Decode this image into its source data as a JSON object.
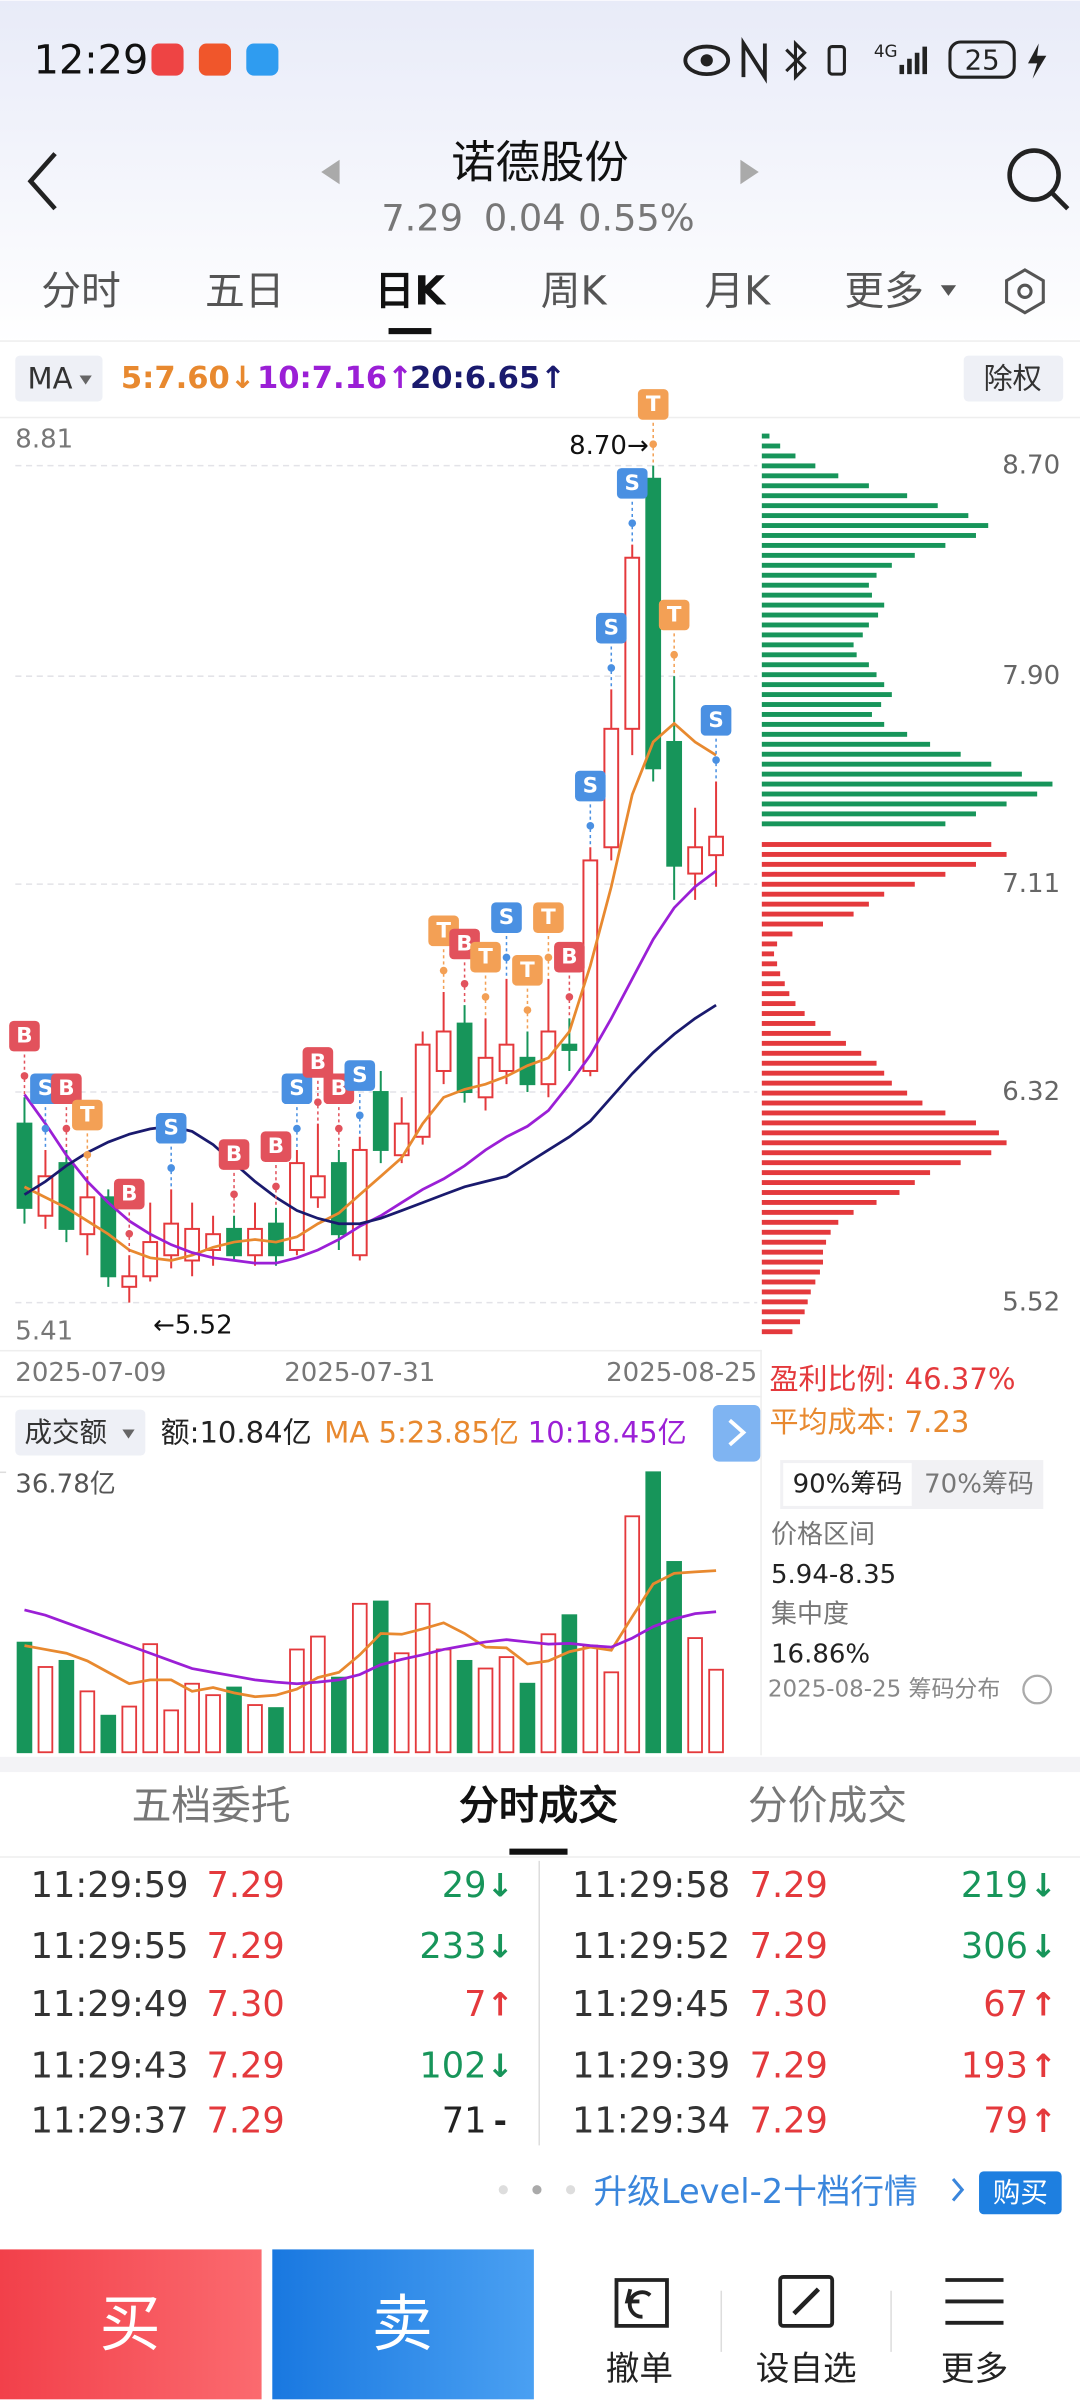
{
  "status_bar": {
    "time": "12:29",
    "network": "4G",
    "battery": "25"
  },
  "header": {
    "title": "诺德股份",
    "price": "7.29",
    "change": "0.04",
    "change_pct": "0.55%"
  },
  "tabs": [
    "分时",
    "五日",
    "日K",
    "周K",
    "月K",
    "更多"
  ],
  "ma_legend": {
    "label": "MA",
    "ma5": "5:7.60↓",
    "ma10": "10:7.16↑",
    "ma20": "20:6.65↑",
    "adjust": "除权"
  },
  "chart_data": [
    {
      "type": "candlestick",
      "categories": [
        "2025-07-09",
        null,
        null,
        null,
        null,
        null,
        null,
        null,
        null,
        null,
        null,
        null,
        null,
        null,
        null,
        null,
        "2025-07-31",
        null,
        null,
        null,
        null,
        null,
        null,
        null,
        null,
        null,
        null,
        null,
        null,
        null,
        null,
        null,
        null,
        "2025-08-25"
      ],
      "ohlc": [
        [
          6.2,
          6.3,
          5.82,
          5.88
        ],
        [
          5.85,
          6.1,
          5.8,
          6.0
        ],
        [
          6.05,
          6.1,
          5.75,
          5.8
        ],
        [
          5.78,
          6.0,
          5.7,
          5.92
        ],
        [
          5.92,
          5.95,
          5.58,
          5.62
        ],
        [
          5.58,
          5.7,
          5.52,
          5.62
        ],
        [
          5.62,
          5.9,
          5.6,
          5.75
        ],
        [
          5.7,
          5.95,
          5.65,
          5.82
        ],
        [
          5.68,
          5.9,
          5.62,
          5.8
        ],
        [
          5.72,
          5.85,
          5.66,
          5.78
        ],
        [
          5.8,
          5.85,
          5.68,
          5.7
        ],
        [
          5.7,
          5.9,
          5.66,
          5.8
        ],
        [
          5.82,
          5.88,
          5.66,
          5.7
        ],
        [
          5.72,
          6.1,
          5.7,
          6.05
        ],
        [
          5.92,
          6.2,
          5.88,
          6.0
        ],
        [
          6.05,
          6.1,
          5.72,
          5.78
        ],
        [
          5.7,
          6.15,
          5.68,
          6.1
        ],
        [
          6.32,
          6.4,
          6.05,
          6.1
        ],
        [
          6.08,
          6.3,
          6.05,
          6.2
        ],
        [
          6.15,
          6.55,
          6.12,
          6.5
        ],
        [
          6.4,
          6.7,
          6.35,
          6.55
        ],
        [
          6.58,
          6.65,
          6.28,
          6.32
        ],
        [
          6.3,
          6.6,
          6.25,
          6.45
        ],
        [
          6.4,
          6.75,
          6.35,
          6.5
        ],
        [
          6.45,
          6.55,
          6.32,
          6.35
        ],
        [
          6.35,
          6.75,
          6.3,
          6.55
        ],
        [
          6.5,
          6.6,
          6.4,
          6.48
        ],
        [
          6.4,
          7.25,
          6.38,
          7.2
        ],
        [
          7.25,
          7.85,
          7.2,
          7.7
        ],
        [
          7.7,
          8.4,
          7.6,
          8.35
        ],
        [
          8.65,
          8.7,
          7.5,
          7.55
        ],
        [
          7.65,
          7.9,
          7.05,
          7.18
        ],
        [
          7.15,
          7.4,
          7.05,
          7.25
        ],
        [
          7.22,
          7.5,
          7.1,
          7.29
        ]
      ],
      "up_color": "#e4393c",
      "down_color": "#17955a",
      "ma_lines": [
        {
          "color": "#e8892f",
          "values": [
            5.96,
            5.92,
            5.88,
            5.83,
            5.78,
            5.72,
            5.69,
            5.68,
            5.7,
            5.73,
            5.75,
            5.76,
            5.75,
            5.77,
            5.82,
            5.86,
            5.93,
            6.0,
            6.07,
            6.2,
            6.3,
            6.33,
            6.35,
            6.38,
            6.42,
            6.45,
            6.55,
            6.8,
            7.1,
            7.45,
            7.65,
            7.72,
            7.65,
            7.6
          ]
        },
        {
          "color": "#9b1fd6",
          "values": [
            6.31,
            6.2,
            6.08,
            5.98,
            5.9,
            5.83,
            5.78,
            5.74,
            5.71,
            5.69,
            5.68,
            5.67,
            5.67,
            5.69,
            5.72,
            5.76,
            5.81,
            5.85,
            5.9,
            5.95,
            5.99,
            6.04,
            6.1,
            6.15,
            6.19,
            6.25,
            6.35,
            6.46,
            6.6,
            6.75,
            6.9,
            7.02,
            7.1,
            7.16
          ]
        },
        {
          "color": "#1a1a6e",
          "values": [
            5.93,
            5.98,
            6.04,
            6.09,
            6.13,
            6.16,
            6.18,
            6.19,
            6.17,
            6.12,
            6.05,
            5.98,
            5.92,
            5.87,
            5.84,
            5.82,
            5.82,
            5.84,
            5.87,
            5.9,
            5.93,
            5.96,
            5.98,
            6.0,
            6.05,
            6.1,
            6.15,
            6.21,
            6.3,
            6.39,
            6.47,
            6.54,
            6.6,
            6.65
          ]
        }
      ],
      "signals": [
        [
          "B"
        ],
        [
          "S"
        ],
        [
          "B"
        ],
        [
          "T"
        ],
        null,
        [
          "B"
        ],
        null,
        [
          "S"
        ],
        null,
        null,
        [
          "B"
        ],
        null,
        [
          "B"
        ],
        [
          "S"
        ],
        [
          "B"
        ],
        [
          "B"
        ],
        [
          "S"
        ],
        null,
        null,
        null,
        [
          "T"
        ],
        [
          "B"
        ],
        [
          "T"
        ],
        [
          "S"
        ],
        [
          "T"
        ],
        [
          "T"
        ],
        [
          "B"
        ],
        [
          "S"
        ],
        [
          "S"
        ],
        [
          "S"
        ],
        [
          "T"
        ],
        [
          "T"
        ],
        null,
        [
          "S"
        ]
      ],
      "signal_colors": {
        "B": "#e2525c",
        "S": "#4a90e2",
        "T": "#f3a055"
      },
      "ylim": [
        5.41,
        8.81
      ],
      "yticks": [
        8.81,
        5.41
      ],
      "y2ticks": [
        {
          "value": 8.7,
          "label": "8.70"
        },
        {
          "value": 7.9,
          "label": "7.90"
        },
        7.11,
        6.32,
        5.52
      ],
      "grid": true,
      "annotations": [
        "8.70→",
        "←5.52"
      ],
      "chips": {
        "above": {
          "color": "#17955a",
          "values": [
            5,
            12,
            22,
            35,
            50,
            70,
            95,
            115,
            135,
            148,
            140,
            120,
            100,
            85,
            75,
            70,
            72,
            80,
            76,
            70,
            66,
            60,
            62,
            70,
            75,
            80,
            85,
            78,
            72,
            80,
            95,
            110,
            130,
            150,
            170,
            190,
            180,
            160,
            140,
            120
          ]
        },
        "below": {
          "color": "#e4393c",
          "values": [
            150,
            160,
            140,
            120,
            100,
            80,
            70,
            60,
            40,
            20,
            10,
            8,
            10,
            12,
            15,
            18,
            22,
            28,
            35,
            45,
            55,
            65,
            75,
            80,
            85,
            95,
            105,
            120,
            140,
            155,
            160,
            150,
            130,
            110,
            100,
            90,
            75,
            60,
            50,
            45,
            42,
            40,
            40,
            38,
            35,
            32,
            30,
            28,
            25,
            20
          ]
        }
      }
    },
    {
      "type": "bar",
      "legend": "成交额",
      "amount": "额:10.84亿",
      "ma5_label": "MA 5:23.85亿",
      "ma10_label": "10:18.45亿",
      "values": [
        14.4,
        11.2,
        12.0,
        8.0,
        4.8,
        6.0,
        14.2,
        5.5,
        9.0,
        7.5,
        8.5,
        6.2,
        5.8,
        13.5,
        15.2,
        9.8,
        19.5,
        19.8,
        13.0,
        19.5,
        13.5,
        12.0,
        11.0,
        12.5,
        9.0,
        15.5,
        18.0,
        14.0,
        10.5,
        31.0,
        36.78,
        25.0,
        15.0,
        10.84
      ],
      "ylim": [
        0,
        36.78
      ],
      "yticks": [
        {
          "value": 36.78,
          "label": "36.78亿"
        }
      ],
      "ma_lines": [
        {
          "color": "#e8892f",
          "values": [
            14,
            13.5,
            13,
            12,
            10.5,
            9,
            9.5,
            9.5,
            8,
            8.5,
            7.8,
            7.3,
            7.5,
            8.3,
            9.8,
            10.5,
            12.8,
            15.6,
            15.5,
            16.2,
            17,
            15.6,
            13.8,
            13.7,
            11.6,
            12,
            13.2,
            13.8,
            13.4,
            17.8,
            22.1,
            23.5,
            23.7,
            23.85
          ]
        },
        {
          "color": "#9b1fd6",
          "values": [
            18.7,
            18,
            17,
            16,
            15,
            14,
            13,
            12,
            11,
            10.5,
            10,
            9.5,
            9.2,
            9,
            9.2,
            9.5,
            10.2,
            11.5,
            12.2,
            12.8,
            13.5,
            14,
            14.5,
            14.8,
            14.5,
            14.2,
            14.3,
            14,
            13.8,
            15,
            16.5,
            17.5,
            18.2,
            18.45
          ]
        }
      ]
    }
  ],
  "chip_info": {
    "profit": "盈利比例: 46.37%",
    "avg_cost": "平均成本: 7.23",
    "tab_90": "90%筹码",
    "tab_70": "70%筹码",
    "range_label": "价格区间",
    "range": "5.94-8.35",
    "conc_label": "集中度",
    "concentration": "16.86%",
    "footer": "2025-08-25 筹码分布"
  },
  "trade_tabs": [
    "五档委托",
    "分时成交",
    "分价成交"
  ],
  "trades": {
    "left": [
      {
        "time": "11:29:59",
        "price": "7.29",
        "volume": 29,
        "dir": "↓"
      },
      {
        "time": "11:29:55",
        "price": "7.29",
        "volume": 233,
        "dir": "↓"
      },
      {
        "time": "11:29:49",
        "price": "7.30",
        "volume": 7,
        "dir": "↑"
      },
      {
        "time": "11:29:43",
        "price": "7.29",
        "volume": 102,
        "dir": "↓"
      },
      {
        "time": "11:29:37",
        "price": "7.29",
        "volume": 71,
        "dir": "-"
      }
    ],
    "right": [
      {
        "time": "11:29:58",
        "price": "7.29",
        "volume": 219,
        "dir": "↓"
      },
      {
        "time": "11:29:52",
        "price": "7.29",
        "volume": 306,
        "dir": "↓"
      },
      {
        "time": "11:29:45",
        "price": "7.30",
        "volume": 67,
        "dir": "↑"
      },
      {
        "time": "11:29:39",
        "price": "7.29",
        "volume": 193,
        "dir": "↑"
      },
      {
        "time": "11:29:34",
        "price": "7.29",
        "volume": 79,
        "dir": "↑"
      }
    ]
  },
  "level2": {
    "text": "升级Level-2十档行情",
    "buy": "购买"
  },
  "bottom_bar": {
    "buy": "买",
    "sell": "卖",
    "cancel": "撤单",
    "watch": "设自选",
    "more": "更多"
  }
}
